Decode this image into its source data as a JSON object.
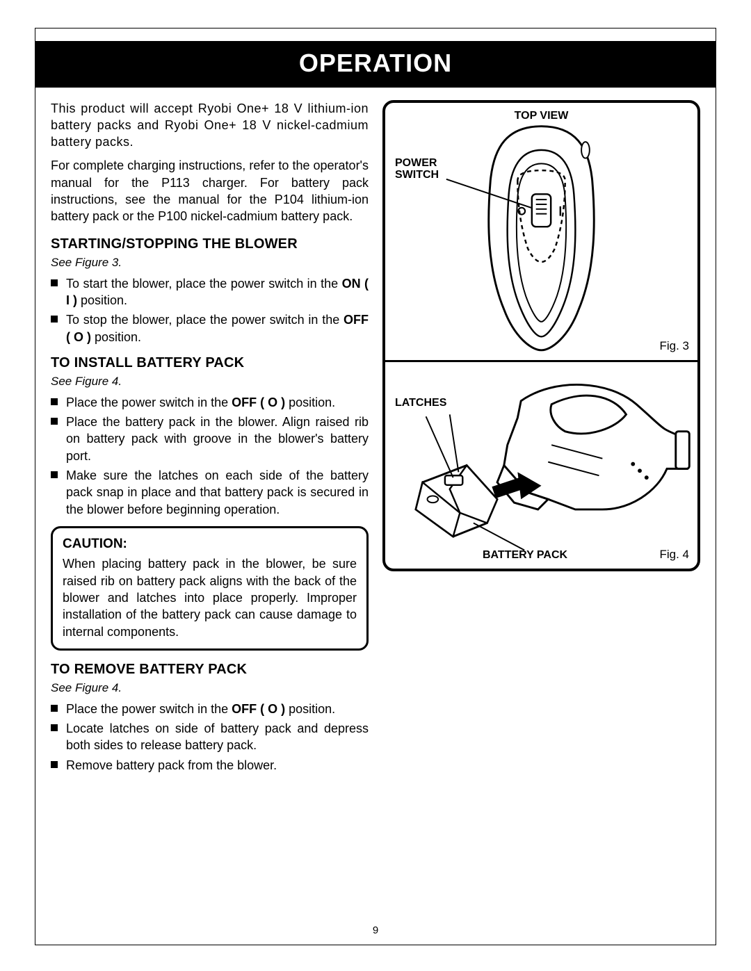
{
  "title": "OPERATION",
  "intro1": "This product will accept Ryobi One+ 18 V lithium-ion battery packs and Ryobi One+ 18 V nickel-cadmium battery packs.",
  "intro2": "For complete charging instructions, refer to the operator's manual for the P113 charger. For battery pack instructions, see the manual for the P104 lithium-ion battery pack or the P100 nickel-cadmium battery pack.",
  "sec1": {
    "heading": "STARTING/STOPPING THE BLOWER",
    "see": "See Figure 3.",
    "items": [
      "To start the blower, place the power switch in the <b>ON ( I )</b> position.",
      "To stop the blower, place the power switch in the <b>OFF ( O )</b> position."
    ]
  },
  "sec2": {
    "heading": "TO INSTALL BATTERY PACK",
    "see": "See Figure 4.",
    "items": [
      "Place the power switch in the <b>OFF ( O )</b> position.",
      "Place the battery pack in the blower. Align raised rib on battery pack with groove in the blower's battery port.",
      "Make sure the latches on each side of the battery pack snap in place and that battery pack is secured in the blower before beginning operation."
    ]
  },
  "caution": {
    "heading": "CAUTION:",
    "text": "When placing battery pack in the blower, be sure raised rib on battery pack aligns with the back of the blower and latches into place properly. Improper installation of the battery pack can cause damage to internal components."
  },
  "sec3": {
    "heading": "TO REMOVE BATTERY PACK",
    "see": "See Figure 4.",
    "items": [
      "Place the power switch in the <b>OFF ( O )</b> position.",
      "Locate latches on side of battery pack and depress both sides to release battery pack.",
      "Remove battery pack from the blower."
    ]
  },
  "fig3": {
    "topview": "TOP VIEW",
    "power": "POWER",
    "switch": "SWITCH",
    "num": "Fig. 3"
  },
  "fig4": {
    "latches": "LATCHES",
    "battery": "BATTERY PACK",
    "num": "Fig. 4"
  },
  "pagenum": "9"
}
